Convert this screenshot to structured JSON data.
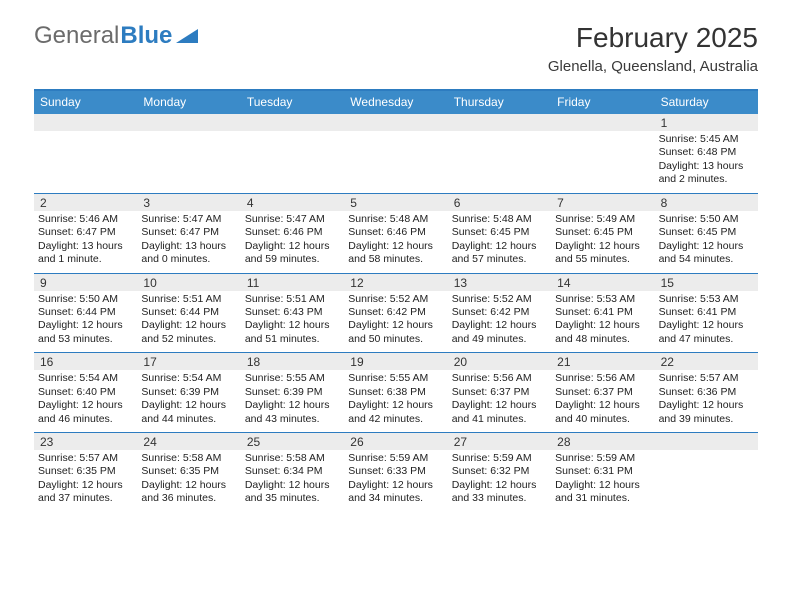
{
  "logo": {
    "text_gray": "General",
    "text_blue": "Blue",
    "tri_color": "#2d7cc0"
  },
  "header": {
    "month_title": "February 2025",
    "location": "Glenella, Queensland, Australia"
  },
  "colors": {
    "header_bar": "#3b8bc9",
    "rule": "#2d7cc0",
    "daynum_bg": "#ececec",
    "text": "#222222"
  },
  "days_of_week": [
    "Sunday",
    "Monday",
    "Tuesday",
    "Wednesday",
    "Thursday",
    "Friday",
    "Saturday"
  ],
  "weeks": [
    [
      {
        "num": "",
        "lines": []
      },
      {
        "num": "",
        "lines": []
      },
      {
        "num": "",
        "lines": []
      },
      {
        "num": "",
        "lines": []
      },
      {
        "num": "",
        "lines": []
      },
      {
        "num": "",
        "lines": []
      },
      {
        "num": "1",
        "lines": [
          "Sunrise: 5:45 AM",
          "Sunset: 6:48 PM",
          "Daylight: 13 hours",
          "and 2 minutes."
        ]
      }
    ],
    [
      {
        "num": "2",
        "lines": [
          "Sunrise: 5:46 AM",
          "Sunset: 6:47 PM",
          "Daylight: 13 hours",
          "and 1 minute."
        ]
      },
      {
        "num": "3",
        "lines": [
          "Sunrise: 5:47 AM",
          "Sunset: 6:47 PM",
          "Daylight: 13 hours",
          "and 0 minutes."
        ]
      },
      {
        "num": "4",
        "lines": [
          "Sunrise: 5:47 AM",
          "Sunset: 6:46 PM",
          "Daylight: 12 hours",
          "and 59 minutes."
        ]
      },
      {
        "num": "5",
        "lines": [
          "Sunrise: 5:48 AM",
          "Sunset: 6:46 PM",
          "Daylight: 12 hours",
          "and 58 minutes."
        ]
      },
      {
        "num": "6",
        "lines": [
          "Sunrise: 5:48 AM",
          "Sunset: 6:45 PM",
          "Daylight: 12 hours",
          "and 57 minutes."
        ]
      },
      {
        "num": "7",
        "lines": [
          "Sunrise: 5:49 AM",
          "Sunset: 6:45 PM",
          "Daylight: 12 hours",
          "and 55 minutes."
        ]
      },
      {
        "num": "8",
        "lines": [
          "Sunrise: 5:50 AM",
          "Sunset: 6:45 PM",
          "Daylight: 12 hours",
          "and 54 minutes."
        ]
      }
    ],
    [
      {
        "num": "9",
        "lines": [
          "Sunrise: 5:50 AM",
          "Sunset: 6:44 PM",
          "Daylight: 12 hours",
          "and 53 minutes."
        ]
      },
      {
        "num": "10",
        "lines": [
          "Sunrise: 5:51 AM",
          "Sunset: 6:44 PM",
          "Daylight: 12 hours",
          "and 52 minutes."
        ]
      },
      {
        "num": "11",
        "lines": [
          "Sunrise: 5:51 AM",
          "Sunset: 6:43 PM",
          "Daylight: 12 hours",
          "and 51 minutes."
        ]
      },
      {
        "num": "12",
        "lines": [
          "Sunrise: 5:52 AM",
          "Sunset: 6:42 PM",
          "Daylight: 12 hours",
          "and 50 minutes."
        ]
      },
      {
        "num": "13",
        "lines": [
          "Sunrise: 5:52 AM",
          "Sunset: 6:42 PM",
          "Daylight: 12 hours",
          "and 49 minutes."
        ]
      },
      {
        "num": "14",
        "lines": [
          "Sunrise: 5:53 AM",
          "Sunset: 6:41 PM",
          "Daylight: 12 hours",
          "and 48 minutes."
        ]
      },
      {
        "num": "15",
        "lines": [
          "Sunrise: 5:53 AM",
          "Sunset: 6:41 PM",
          "Daylight: 12 hours",
          "and 47 minutes."
        ]
      }
    ],
    [
      {
        "num": "16",
        "lines": [
          "Sunrise: 5:54 AM",
          "Sunset: 6:40 PM",
          "Daylight: 12 hours",
          "and 46 minutes."
        ]
      },
      {
        "num": "17",
        "lines": [
          "Sunrise: 5:54 AM",
          "Sunset: 6:39 PM",
          "Daylight: 12 hours",
          "and 44 minutes."
        ]
      },
      {
        "num": "18",
        "lines": [
          "Sunrise: 5:55 AM",
          "Sunset: 6:39 PM",
          "Daylight: 12 hours",
          "and 43 minutes."
        ]
      },
      {
        "num": "19",
        "lines": [
          "Sunrise: 5:55 AM",
          "Sunset: 6:38 PM",
          "Daylight: 12 hours",
          "and 42 minutes."
        ]
      },
      {
        "num": "20",
        "lines": [
          "Sunrise: 5:56 AM",
          "Sunset: 6:37 PM",
          "Daylight: 12 hours",
          "and 41 minutes."
        ]
      },
      {
        "num": "21",
        "lines": [
          "Sunrise: 5:56 AM",
          "Sunset: 6:37 PM",
          "Daylight: 12 hours",
          "and 40 minutes."
        ]
      },
      {
        "num": "22",
        "lines": [
          "Sunrise: 5:57 AM",
          "Sunset: 6:36 PM",
          "Daylight: 12 hours",
          "and 39 minutes."
        ]
      }
    ],
    [
      {
        "num": "23",
        "lines": [
          "Sunrise: 5:57 AM",
          "Sunset: 6:35 PM",
          "Daylight: 12 hours",
          "and 37 minutes."
        ]
      },
      {
        "num": "24",
        "lines": [
          "Sunrise: 5:58 AM",
          "Sunset: 6:35 PM",
          "Daylight: 12 hours",
          "and 36 minutes."
        ]
      },
      {
        "num": "25",
        "lines": [
          "Sunrise: 5:58 AM",
          "Sunset: 6:34 PM",
          "Daylight: 12 hours",
          "and 35 minutes."
        ]
      },
      {
        "num": "26",
        "lines": [
          "Sunrise: 5:59 AM",
          "Sunset: 6:33 PM",
          "Daylight: 12 hours",
          "and 34 minutes."
        ]
      },
      {
        "num": "27",
        "lines": [
          "Sunrise: 5:59 AM",
          "Sunset: 6:32 PM",
          "Daylight: 12 hours",
          "and 33 minutes."
        ]
      },
      {
        "num": "28",
        "lines": [
          "Sunrise: 5:59 AM",
          "Sunset: 6:31 PM",
          "Daylight: 12 hours",
          "and 31 minutes."
        ]
      },
      {
        "num": "",
        "lines": []
      }
    ]
  ]
}
